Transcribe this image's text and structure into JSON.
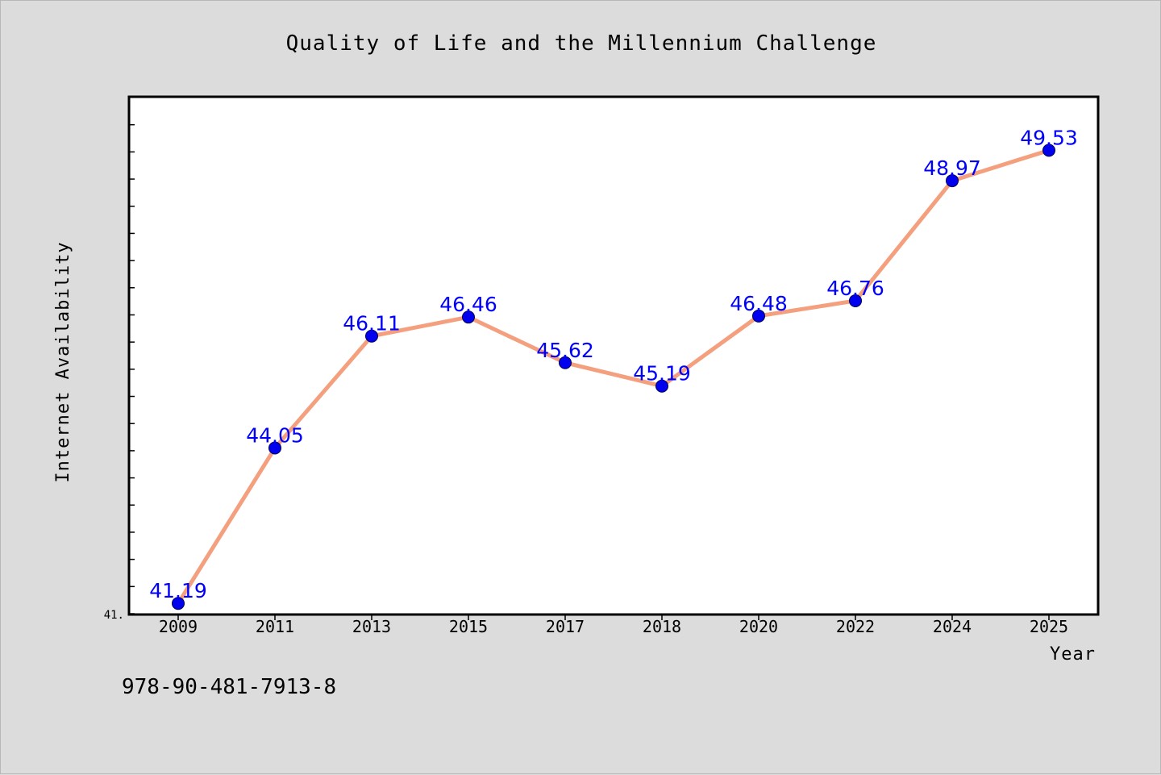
{
  "chart_data": {
    "type": "line",
    "title": "Quality of Life and the Millennium Challenge",
    "xlabel": "Year",
    "ylabel": "Internet Availability",
    "categories": [
      "2009",
      "2011",
      "2013",
      "2015",
      "2017",
      "2018",
      "2020",
      "2022",
      "2024",
      "2025"
    ],
    "series": [
      {
        "values": [
          41.19,
          44.05,
          46.11,
          46.46,
          45.62,
          45.19,
          46.48,
          46.76,
          48.97,
          49.53
        ]
      }
    ],
    "data_labels": [
      "41.19",
      "44.05",
      "46.11",
      "46.46",
      "45.62",
      "45.19",
      "46.48",
      "46.76",
      "48.97",
      "49.53"
    ],
    "ylim": [
      41.0,
      50.5
    ],
    "y_tick_label": "41.",
    "grid": false,
    "legend": "none",
    "colors": {
      "line": "#f4a07e",
      "marker": "#0000ee",
      "data_label": "#0000ff",
      "background": "#dcdcdc",
      "plot_area": "#ffffff"
    }
  },
  "footer_text": "978-90-481-7913-8"
}
